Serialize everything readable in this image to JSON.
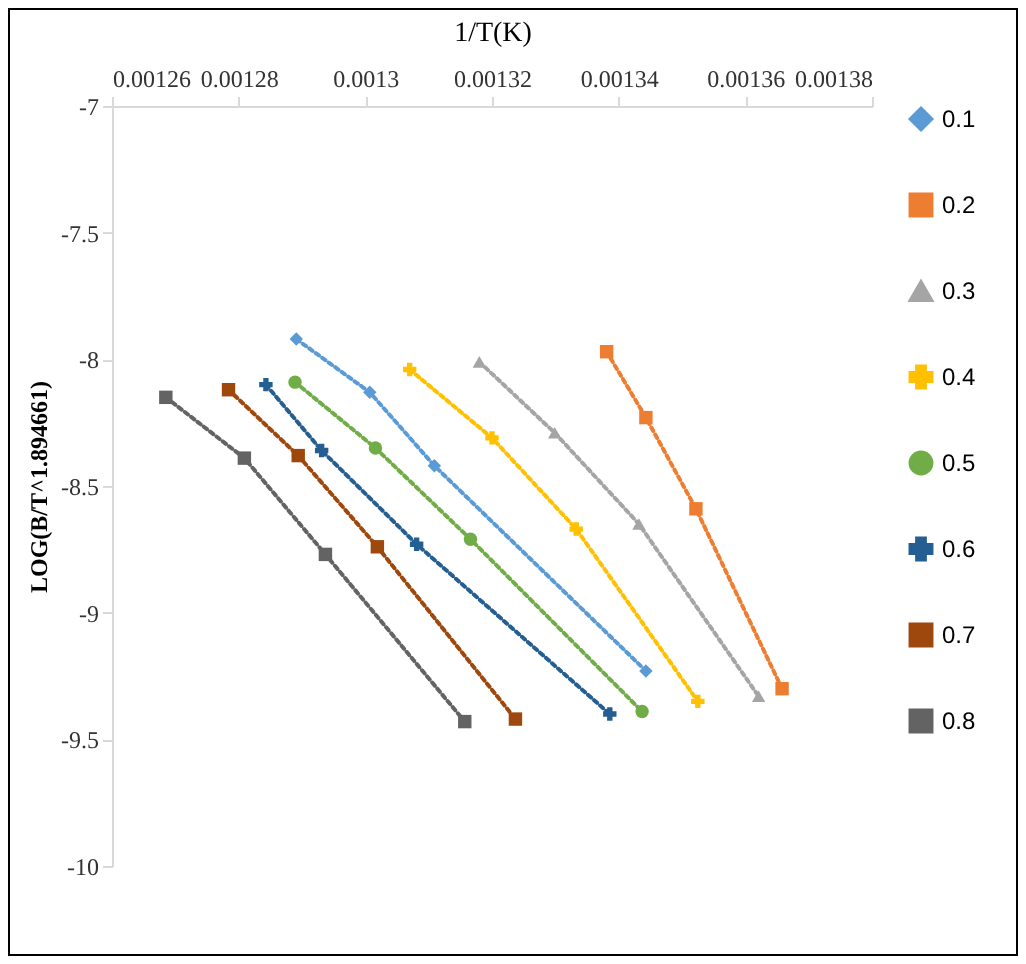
{
  "chart_data": {
    "type": "line",
    "xlabel": "1/T(K)",
    "ylabel": "LOG(B/T^1.894661)",
    "xlim": [
      0.00126,
      0.00138
    ],
    "xticks": [
      0.00126,
      0.00128,
      0.0013,
      0.00132,
      0.00134,
      0.00136,
      0.00138
    ],
    "ylim": [
      -10,
      -7
    ],
    "yticks": [
      -7,
      -7.5,
      -8,
      -8.5,
      -9,
      -9.5,
      -10
    ],
    "grid": false,
    "legend": "right",
    "line_style": "dotted",
    "series": [
      {
        "name": "0.1",
        "color": "#5b9bd5",
        "marker": "diamond",
        "x": [
          0.0012891,
          0.0013007,
          0.0013109,
          0.0013443
        ],
        "values": [
          -7.92,
          -8.13,
          -8.42,
          -9.23
        ]
      },
      {
        "name": "0.2",
        "color": "#ed7d31",
        "marker": "square",
        "x": [
          0.0013381,
          0.0013443,
          0.0013522,
          0.0013658
        ],
        "values": [
          -7.97,
          -8.23,
          -8.59,
          -9.3
        ]
      },
      {
        "name": "0.3",
        "color": "#a5a5a5",
        "marker": "triangle",
        "x": [
          0.001318,
          0.0013299,
          0.0013432,
          0.0013621
        ],
        "values": [
          -8.01,
          -8.29,
          -8.65,
          -9.33
        ]
      },
      {
        "name": "0.4",
        "color": "#ffc000",
        "marker": "cross",
        "x": [
          0.001307,
          0.00132,
          0.0013333,
          0.0013525
        ],
        "values": [
          -8.04,
          -8.31,
          -8.67,
          -9.35
        ]
      },
      {
        "name": "0.5",
        "color": "#70ad47",
        "marker": "circle",
        "x": [
          0.0012889,
          0.0013016,
          0.0013166,
          0.0013437
        ],
        "values": [
          -8.09,
          -8.35,
          -8.71,
          -9.39
        ]
      },
      {
        "name": "0.6",
        "color": "#255e91",
        "marker": "cross",
        "x": [
          0.0012843,
          0.0012931,
          0.0013081,
          0.0013386
        ],
        "values": [
          -8.1,
          -8.36,
          -8.73,
          -9.4
        ]
      },
      {
        "name": "0.7",
        "color": "#9e480e",
        "marker": "square",
        "x": [
          0.0012784,
          0.0012894,
          0.0013019,
          0.0013237
        ],
        "values": [
          -8.12,
          -8.38,
          -8.74,
          -9.42
        ]
      },
      {
        "name": "0.8",
        "color": "#636363",
        "marker": "square",
        "x": [
          0.0012685,
          0.0012809,
          0.0012937,
          0.0013157
        ],
        "values": [
          -8.15,
          -8.39,
          -8.77,
          -9.43
        ]
      }
    ]
  }
}
